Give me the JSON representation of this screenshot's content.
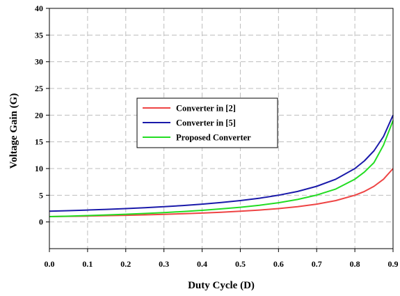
{
  "chart_data": {
    "type": "line",
    "title": "",
    "xlabel": "Duty Cycle (D)",
    "ylabel": "Voltage Gain (G)",
    "xlim": [
      0.0,
      0.9
    ],
    "ylim": [
      -5,
      40
    ],
    "xticks": [
      "0.0",
      "0.1",
      "0.2",
      "0.3",
      "0.4",
      "0.5",
      "0.6",
      "0.7",
      "0.8",
      "0.9"
    ],
    "yticks": [
      "0",
      "5",
      "10",
      "15",
      "20",
      "25",
      "30",
      "35",
      "40"
    ],
    "ytick_values": [
      0,
      5,
      10,
      15,
      20,
      25,
      30,
      35,
      40
    ],
    "grid": true,
    "legend_position": "center-left",
    "x": [
      0.0,
      0.05,
      0.1,
      0.15,
      0.2,
      0.25,
      0.3,
      0.35,
      0.4,
      0.45,
      0.5,
      0.55,
      0.6,
      0.65,
      0.7,
      0.75,
      0.8,
      0.825,
      0.85,
      0.875,
      0.9
    ],
    "series": [
      {
        "name": "Converter in [2]",
        "color": "#ee4444",
        "values": [
          1.0,
          1.05,
          1.11,
          1.18,
          1.25,
          1.33,
          1.43,
          1.54,
          1.67,
          1.82,
          2.0,
          2.22,
          2.5,
          2.86,
          3.33,
          4.0,
          5.0,
          5.71,
          6.67,
          8.0,
          10.0
        ]
      },
      {
        "name": "Converter in [5]",
        "color": "#1a1aaa",
        "values": [
          2.0,
          2.11,
          2.22,
          2.35,
          2.5,
          2.67,
          2.86,
          3.08,
          3.33,
          3.64,
          4.0,
          4.44,
          5.0,
          5.71,
          6.67,
          8.0,
          10.0,
          11.43,
          13.33,
          16.0,
          20.0
        ]
      },
      {
        "name": "Proposed Converter",
        "color": "#22dd22",
        "values": [
          1.0,
          1.08,
          1.19,
          1.31,
          1.44,
          1.59,
          1.76,
          1.95,
          2.18,
          2.45,
          2.75,
          3.13,
          3.6,
          4.21,
          5.03,
          6.16,
          8.0,
          9.33,
          11.11,
          14.4,
          19.0
        ]
      }
    ]
  }
}
